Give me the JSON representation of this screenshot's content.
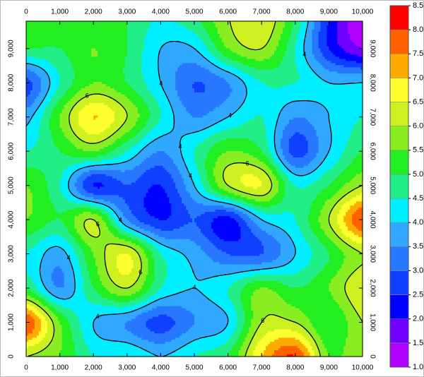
{
  "chart_data": {
    "type": "contour",
    "x": [
      0,
      1000,
      2000,
      3000,
      4000,
      5000,
      6000,
      7000,
      8000,
      9000,
      10000
    ],
    "y": [
      0,
      1000,
      2000,
      3000,
      4000,
      5000,
      6000,
      7000,
      8000,
      9000,
      10000
    ],
    "z": [
      [
        6.0,
        5.5,
        4.5,
        4.5,
        4.0,
        4.5,
        5.0,
        7.0,
        8.0,
        5.5,
        6.0
      ],
      [
        8.0,
        5.5,
        4.0,
        3.5,
        2.8,
        3.5,
        4.0,
        6.0,
        6.0,
        5.0,
        6.0
      ],
      [
        5.0,
        3.5,
        5.0,
        6.0,
        4.5,
        4.0,
        4.5,
        5.5,
        5.0,
        5.5,
        6.5
      ],
      [
        4.5,
        3.8,
        5.5,
        6.5,
        4.5,
        3.8,
        3.0,
        3.0,
        4.0,
        5.0,
        6.0
      ],
      [
        5.5,
        5.0,
        6.0,
        3.5,
        2.5,
        3.0,
        2.3,
        4.0,
        4.5,
        6.0,
        8.0
      ],
      [
        5.5,
        4.5,
        2.5,
        3.0,
        2.5,
        4.0,
        6.0,
        6.5,
        4.5,
        5.0,
        6.0
      ],
      [
        4.5,
        5.0,
        5.5,
        4.5,
        3.5,
        4.5,
        5.5,
        5.0,
        2.8,
        4.0,
        5.0
      ],
      [
        3.8,
        5.5,
        7.0,
        6.0,
        4.5,
        3.5,
        4.0,
        4.5,
        3.5,
        4.0,
        4.5
      ],
      [
        2.8,
        4.5,
        5.5,
        5.0,
        4.0,
        3.0,
        3.5,
        4.5,
        4.5,
        4.0,
        4.0
      ],
      [
        5.0,
        5.0,
        5.5,
        5.0,
        4.0,
        4.0,
        5.5,
        6.0,
        4.5,
        2.5,
        1.5
      ],
      [
        5.5,
        5.5,
        5.0,
        5.0,
        4.5,
        5.0,
        6.0,
        6.5,
        5.0,
        2.5,
        1.0
      ]
    ],
    "xlim": [
      0,
      10000
    ],
    "ylim": [
      0,
      9800
    ],
    "xticks": [
      0,
      {
        "value": 1000,
        "label": "1,000"
      },
      {
        "value": 2000,
        "label": "2,000"
      },
      {
        "value": 3000,
        "label": "3,000"
      },
      {
        "value": 4000,
        "label": "4,000"
      },
      {
        "value": 5000,
        "label": "5,000"
      },
      {
        "value": 6000,
        "label": "6,000"
      },
      {
        "value": 7000,
        "label": "7,000"
      },
      {
        "value": 8000,
        "label": "8,000"
      },
      {
        "value": 9000,
        "label": "9,000"
      },
      {
        "value": 10000,
        "label": "10,000"
      }
    ],
    "yticks": [
      0,
      {
        "value": 1000,
        "label": "1,000"
      },
      {
        "value": 2000,
        "label": "2,000"
      },
      {
        "value": 3000,
        "label": "3,000"
      },
      {
        "value": 4000,
        "label": "4,000"
      },
      {
        "value": 5000,
        "label": "5,000"
      },
      {
        "value": 6000,
        "label": "6,000"
      },
      {
        "value": 7000,
        "label": "7,000"
      },
      {
        "value": 8000,
        "label": "8,000"
      },
      {
        "value": 9000,
        "label": "9,000"
      }
    ],
    "contour_levels": [
      4,
      6
    ],
    "colorbar": {
      "ticks": [
        {
          "value": 1,
          "label": "1.0"
        },
        {
          "value": 1.5,
          "label": "1.5"
        },
        {
          "value": 2,
          "label": "2.0"
        },
        {
          "value": 2.5,
          "label": "2.5"
        },
        {
          "value": 3,
          "label": "3.0"
        },
        {
          "value": 3.5,
          "label": "3.5"
        },
        {
          "value": 4,
          "label": "4.0"
        },
        {
          "value": 4.5,
          "label": "4.5"
        },
        {
          "value": 5,
          "label": "5.0"
        },
        {
          "value": 5.5,
          "label": "5.5"
        },
        {
          "value": 6,
          "label": "6.0"
        },
        {
          "value": 6.5,
          "label": "6.5"
        },
        {
          "value": 7,
          "label": "7.0"
        },
        {
          "value": 7.5,
          "label": "7.5"
        },
        {
          "value": 8,
          "label": "8.0"
        },
        {
          "value": 8.5,
          "label": "8.5"
        }
      ],
      "colors": [
        "#b000ff",
        "#7000ff",
        "#0000ff",
        "#1040ff",
        "#2878ff",
        "#30a8ff",
        "#00eeff",
        "#22ee88",
        "#22ee22",
        "#88ee22",
        "#ccf020",
        "#ffff30",
        "#ffaa00",
        "#ff6000",
        "#ff0000"
      ]
    }
  }
}
